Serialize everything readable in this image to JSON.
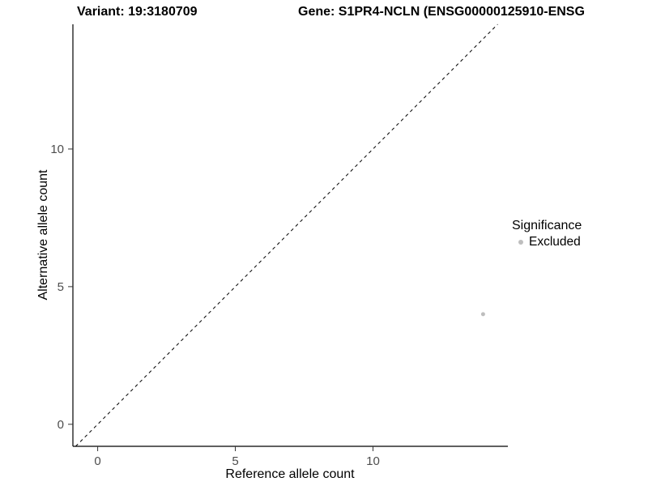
{
  "chart_data": {
    "type": "scatter",
    "title_left": "Variant: 19:3180709",
    "title_right": "Gene: S1PR4-NCLN (ENSG00000125910-ENSG",
    "xlabel": "Reference allele count",
    "ylabel": "Alternative allele count",
    "x_ticks": [
      0,
      5,
      10
    ],
    "y_ticks": [
      0,
      5,
      10
    ],
    "xlim": [
      -0.9,
      14.9
    ],
    "ylim": [
      -0.8,
      14.53
    ],
    "grid": false,
    "reference_line": {
      "type": "identity",
      "style": "dashed",
      "color": "#000000"
    },
    "series": [
      {
        "name": "Excluded",
        "color": "#bebebe",
        "points": [
          {
            "x": 14,
            "y": 4
          }
        ]
      }
    ],
    "legend": {
      "title": "Significance",
      "position": "right",
      "items": [
        {
          "label": "Excluded",
          "color": "#bebebe"
        }
      ]
    },
    "colors": {
      "axis_line": "#000000",
      "tick_label": "#4d4d4d",
      "title": "#000000"
    }
  }
}
